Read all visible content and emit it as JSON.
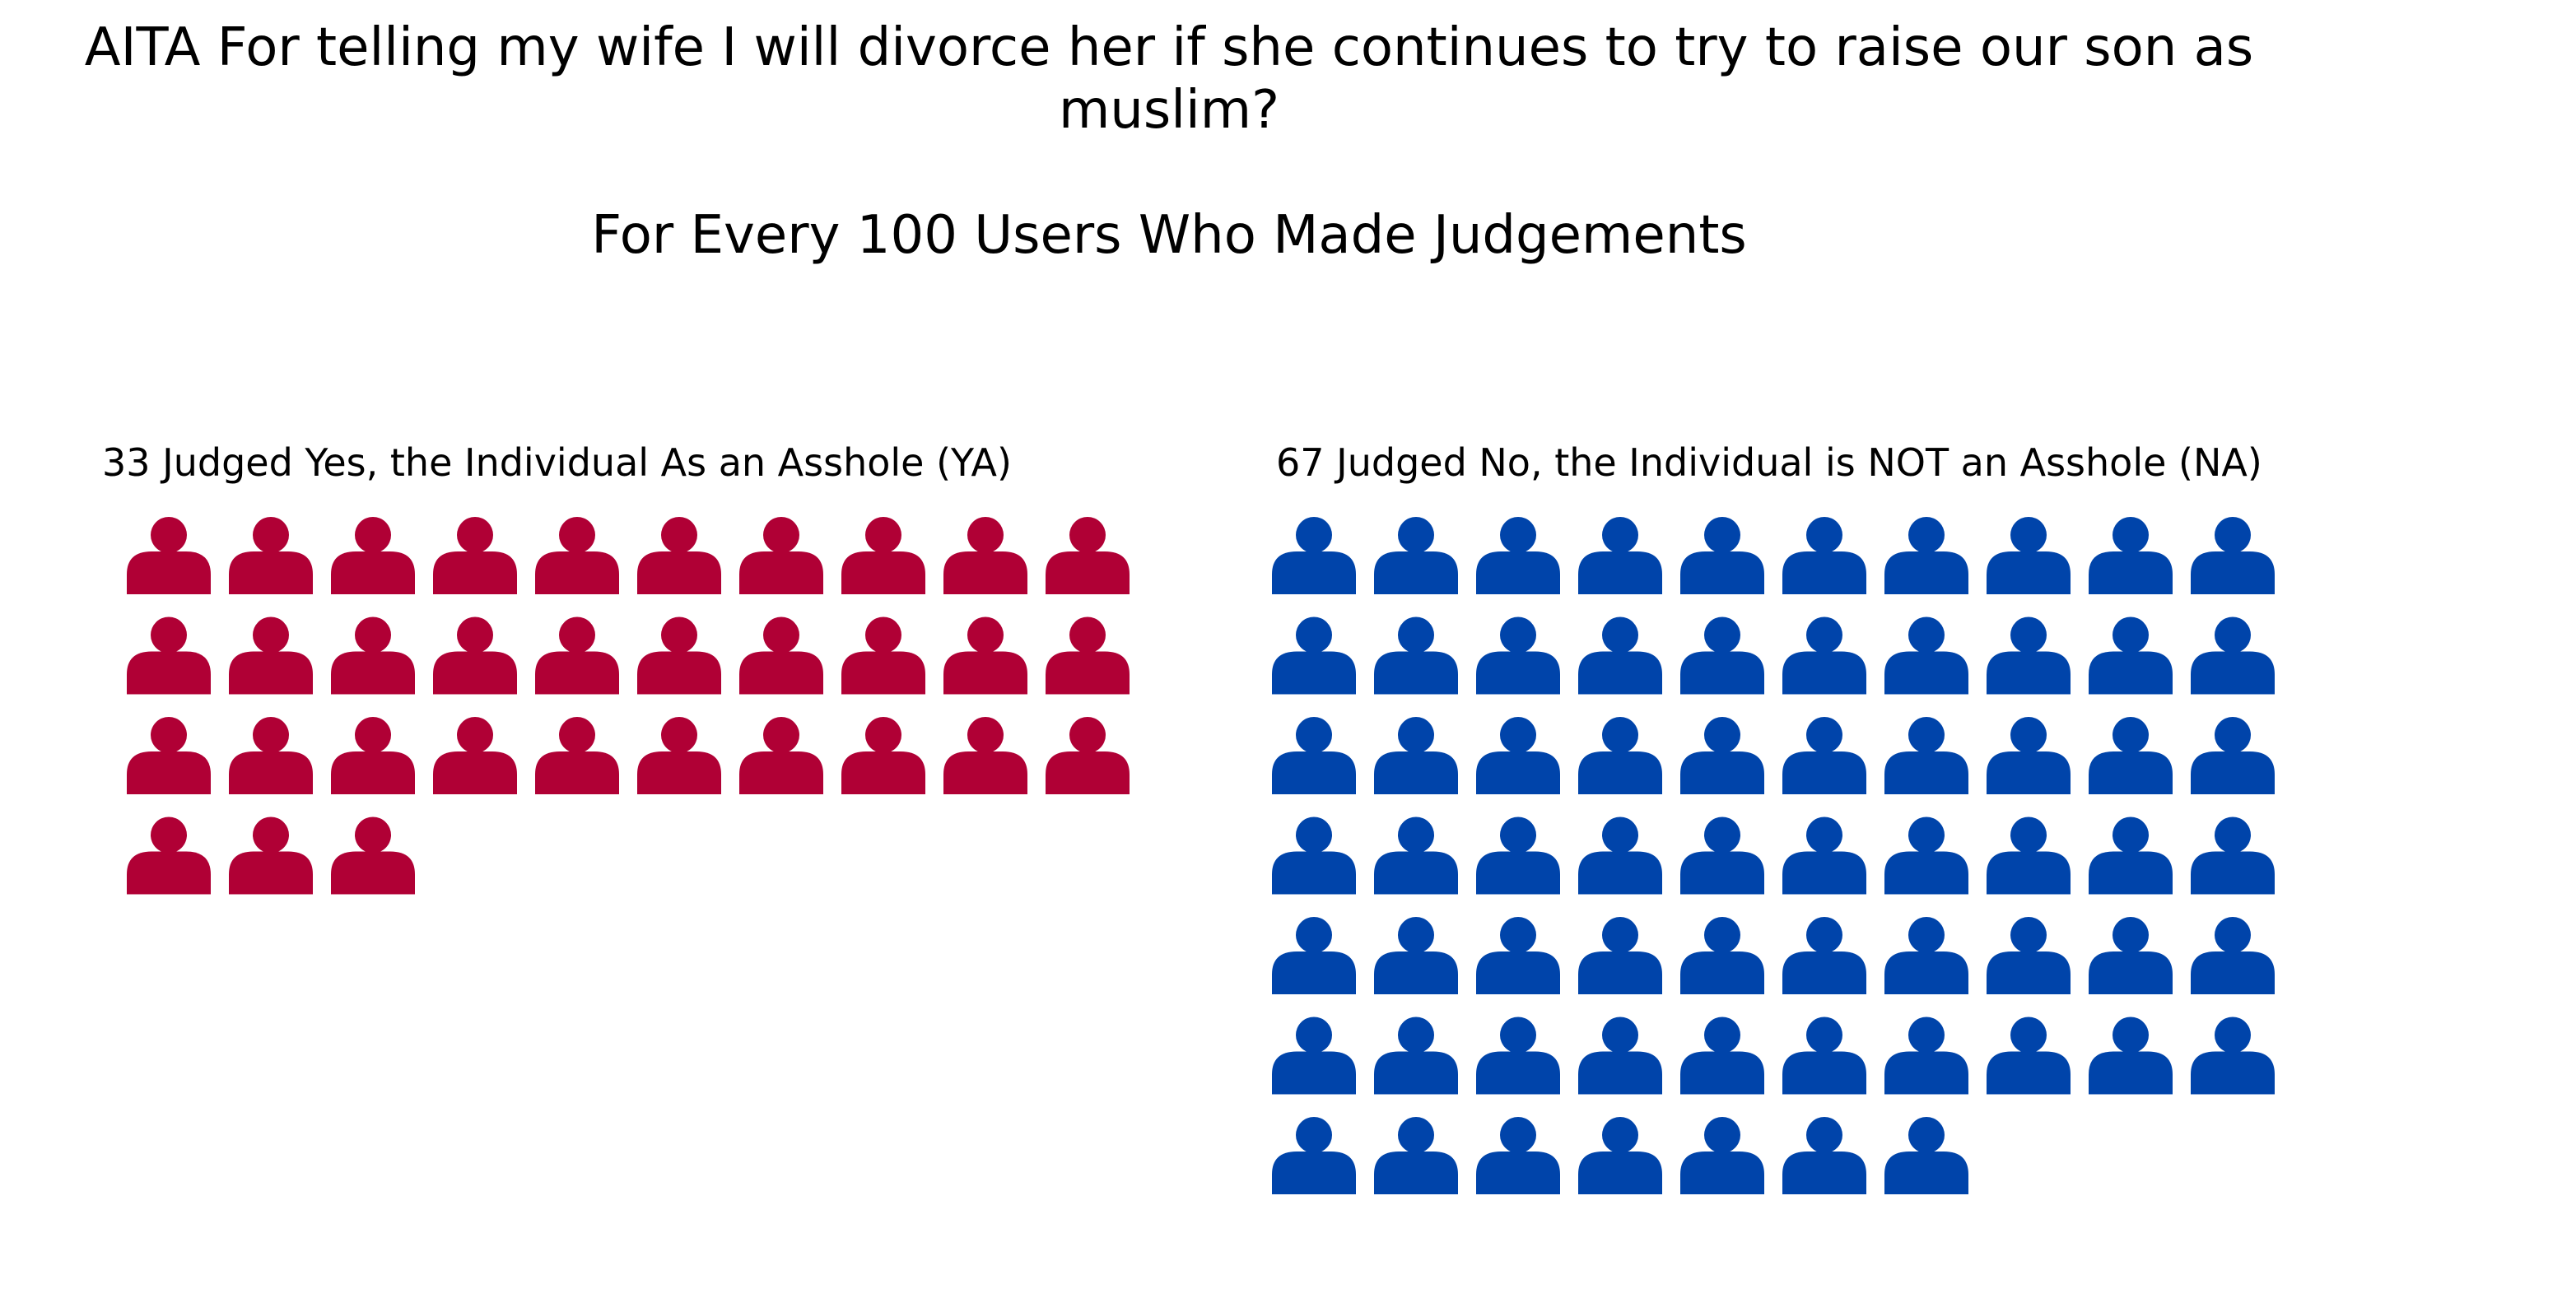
{
  "chart_data": {
    "type": "waffle",
    "title_lines": [
      "AITA For telling my wife I will divorce her if she continues to try to raise our son as",
      "muslim?"
    ],
    "subtitle": "For Every 100 Users Who Made Judgements",
    "icon": "person-icon",
    "icons_per_row": 10,
    "total": 100,
    "panels": [
      {
        "label": "33 Judged Yes, the Individual As an Asshole (YA)",
        "count": 33,
        "color": "#b00035"
      },
      {
        "label": "67 Judged No, the Individual is NOT an Asshole (NA)",
        "count": 67,
        "color": "#0044aa"
      }
    ]
  }
}
